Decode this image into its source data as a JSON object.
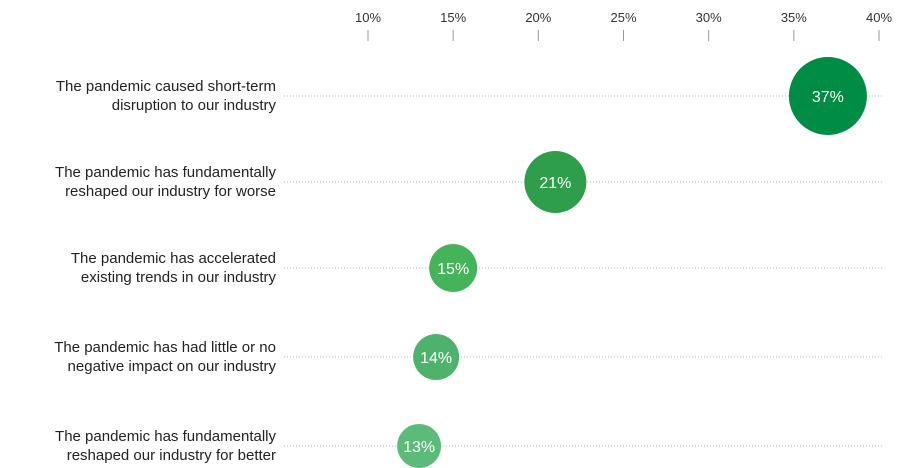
{
  "chart_data": {
    "type": "scatter",
    "x_ticks": [
      "10%",
      "15%",
      "20%",
      "25%",
      "30%",
      "35%",
      "40%"
    ],
    "x_tick_values": [
      10,
      15,
      20,
      25,
      30,
      35,
      40
    ],
    "xlim": [
      10,
      40
    ],
    "grid": "dotted horizontal guide per row",
    "categories": [
      [
        "The pandemic caused short-term",
        "disruption to our industry"
      ],
      [
        "The pandemic has fundamentally",
        "reshaped our industry for worse"
      ],
      [
        "The pandemic has accelerated",
        "existing trends in our industry"
      ],
      [
        "The pandemic has had little or no",
        "negative impact on our industry"
      ],
      [
        "The pandemic has fundamentally",
        "reshaped our industry for better"
      ]
    ],
    "values": [
      37,
      21,
      15,
      14,
      13
    ],
    "value_labels": [
      "37%",
      "21%",
      "15%",
      "14%",
      "13%"
    ],
    "colors": [
      "#008C45",
      "#2E9E4A",
      "#45B35A",
      "#4EB26C",
      "#5DBB79"
    ]
  }
}
